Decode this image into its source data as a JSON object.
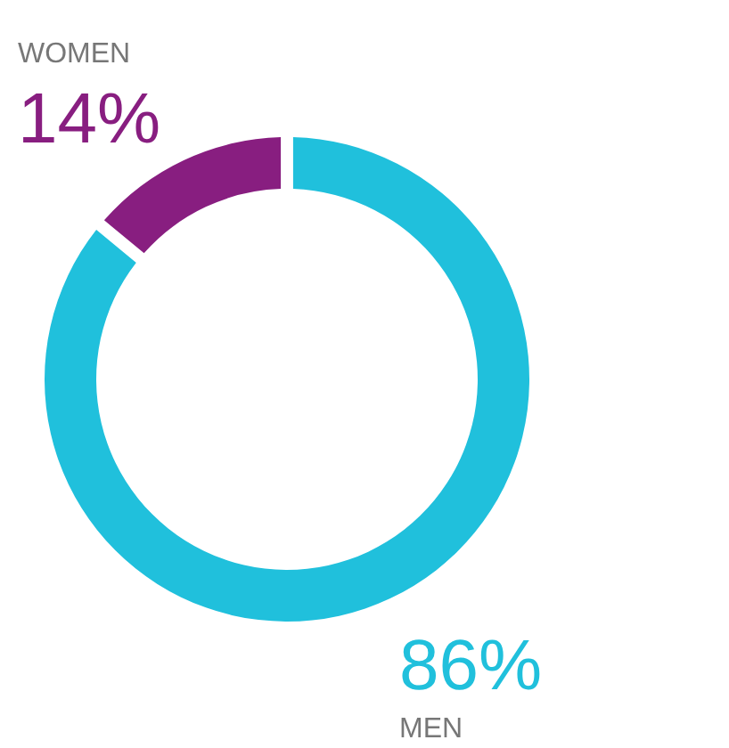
{
  "chart_data": {
    "type": "donut",
    "categories": [
      "MEN",
      "WOMEN"
    ],
    "values": [
      86,
      14
    ],
    "colors": [
      "#20c0dc",
      "#881e80"
    ],
    "value_labels": [
      "86%",
      "14%"
    ]
  }
}
